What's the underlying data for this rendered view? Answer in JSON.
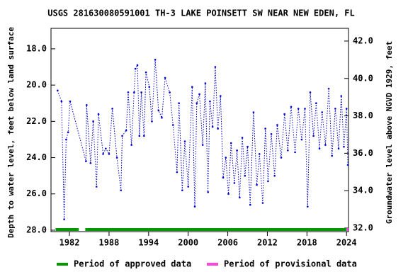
{
  "chart_data": {
    "type": "line",
    "title": "USGS 281630080591001 TH-3 LAKE POINSETT SW NEAR NEW EDEN, FL",
    "y_label": "Depth to water level, feet below land surface",
    "y2_label": "Groundwater level above NGVD 1929, feet",
    "xlim": [
      1979.2,
      2024.3
    ],
    "xticks": [
      1982,
      1988,
      1994,
      2000,
      2006,
      2012,
      2018,
      2024
    ],
    "ylim": [
      16.87,
      28.08
    ],
    "y_inverted": true,
    "yticks": [
      {
        "value": 18,
        "label": "18.0"
      },
      {
        "value": 20,
        "label": "20.0"
      },
      {
        "value": 22,
        "label": "22.0"
      },
      {
        "value": 24,
        "label": "24.0"
      },
      {
        "value": 26,
        "label": "26.0"
      },
      {
        "value": 28,
        "label": "28.0"
      }
    ],
    "y2lim": [
      31.81,
      42.68
    ],
    "y2ticks": [
      {
        "value": 32,
        "label": "32.0"
      },
      {
        "value": 34,
        "label": "34.0"
      },
      {
        "value": 36,
        "label": "36.0"
      },
      {
        "value": 38,
        "label": "38.0"
      },
      {
        "value": 40,
        "label": "40.0"
      },
      {
        "value": 42,
        "label": "42.0"
      }
    ],
    "series": [
      {
        "color": "#0000cc",
        "x": [
          1980.2,
          1980.8,
          1981.2,
          1981.5,
          1981.8,
          1982.1,
          1984.5,
          1984.6,
          1985.2,
          1985.6,
          1986.1,
          1986.4,
          1987.1,
          1987.5,
          1988.0,
          1988.5,
          1989.2,
          1989.8,
          1990.0,
          1990.6,
          1990.9,
          1991.4,
          1991.8,
          1992.0,
          1992.3,
          1992.6,
          1992.9,
          1993.3,
          1993.6,
          1994.1,
          1994.5,
          1995.0,
          1995.5,
          1996.0,
          1996.5,
          1997.2,
          1997.7,
          1998.3,
          1998.6,
          1999.1,
          1999.5,
          2000.0,
          2000.6,
          2001.0,
          2001.3,
          2001.7,
          2002.2,
          2002.6,
          2003.0,
          2003.3,
          2003.7,
          2004.1,
          2004.5,
          2004.9,
          2005.3,
          2005.7,
          2006.1,
          2006.5,
          2007.0,
          2007.4,
          2007.8,
          2008.2,
          2008.6,
          2009.0,
          2009.4,
          2009.9,
          2010.4,
          2010.8,
          2011.3,
          2011.7,
          2012.1,
          2012.6,
          2013.1,
          2013.5,
          2014.1,
          2014.6,
          2015.1,
          2015.6,
          2016.2,
          2016.7,
          2017.2,
          2017.7,
          2018.1,
          2018.5,
          2019.0,
          2019.4,
          2019.9,
          2020.3,
          2020.8,
          2021.3,
          2021.8,
          2022.3,
          2022.8,
          2023.2,
          2023.6,
          2024.0,
          2024.2
        ],
        "values": [
          20.3,
          20.9,
          27.4,
          23.0,
          22.6,
          20.9,
          24.2,
          21.1,
          24.3,
          22.0,
          25.6,
          21.6,
          23.8,
          23.5,
          23.8,
          21.3,
          24.0,
          25.8,
          22.8,
          22.5,
          20.4,
          23.3,
          20.4,
          19.1,
          18.9,
          22.8,
          20.4,
          22.8,
          19.3,
          20.1,
          22.0,
          18.6,
          21.4,
          21.8,
          19.6,
          20.4,
          22.2,
          24.8,
          21.0,
          25.8,
          23.1,
          25.6,
          20.1,
          26.7,
          21.0,
          20.5,
          23.3,
          19.9,
          25.9,
          20.9,
          22.3,
          19.0,
          22.4,
          20.6,
          25.1,
          24.0,
          26.0,
          23.2,
          25.4,
          23.6,
          26.2,
          22.9,
          25.0,
          23.4,
          26.6,
          21.5,
          25.5,
          23.8,
          26.5,
          22.4,
          25.3,
          22.7,
          25.0,
          22.2,
          24.0,
          21.6,
          23.6,
          21.2,
          23.7,
          21.3,
          23.0,
          21.3,
          26.7,
          20.4,
          22.8,
          21.0,
          23.5,
          21.5,
          23.3,
          20.2,
          23.9,
          21.3,
          23.5,
          20.6,
          23.4,
          21.3,
          24.4
        ]
      }
    ],
    "periods": [
      {
        "name": "Period of approved data",
        "color": "#009900",
        "ranges": [
          [
            1979.9,
            1983.4
          ],
          [
            1984.4,
            2024.0
          ]
        ]
      },
      {
        "name": "Period of provisional data",
        "color": "#ff44dd",
        "ranges": [
          [
            2024.0,
            2024.3
          ]
        ]
      }
    ]
  }
}
